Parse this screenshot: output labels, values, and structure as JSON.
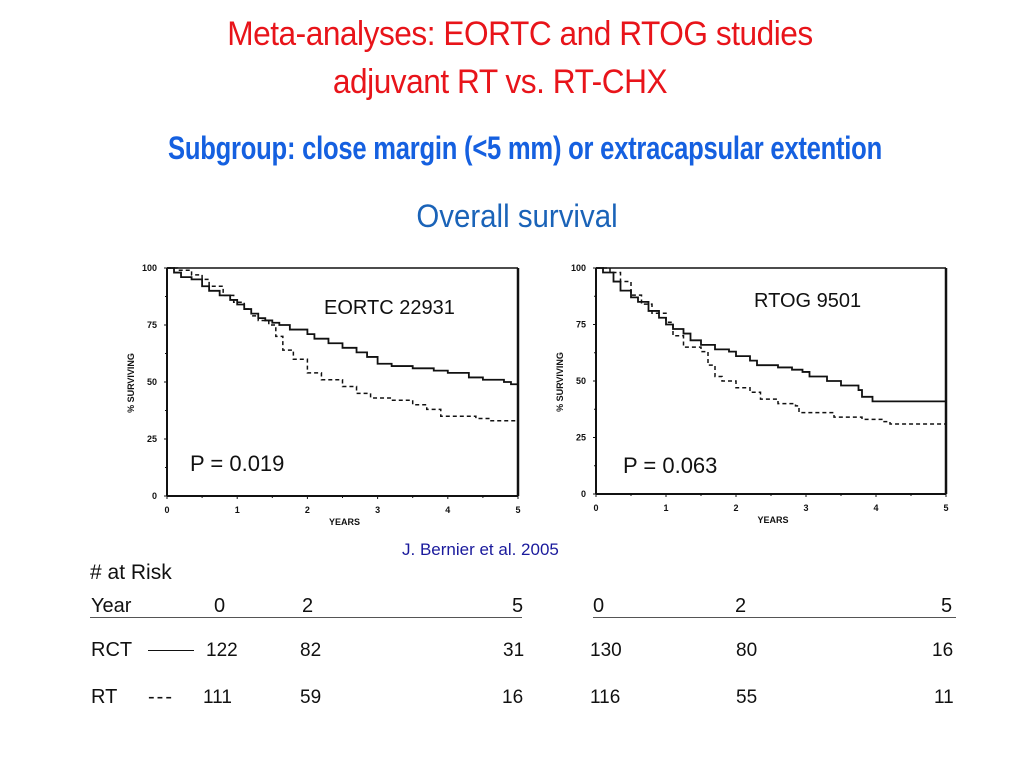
{
  "header": {
    "title_line1": "Meta-analyses: EORTC and RTOG studies",
    "title_line2": "adjuvant RT vs. RT-CHX",
    "subgroup": "Subgroup: close margin (<5 mm) or extracapsular extention",
    "section": "Overall survival"
  },
  "colors": {
    "title": "#e8141a",
    "subgroup": "#1560e0",
    "section": "#1a63b8",
    "citation": "#1a1a9c"
  },
  "chart_data": [
    {
      "type": "line",
      "title": "EORTC 22931",
      "annotation": "P = 0.019",
      "xlabel": "YEARS",
      "ylabel": "% SURVIVING",
      "xlim": [
        0,
        5
      ],
      "ylim": [
        0,
        100
      ],
      "xticks": [
        "0",
        "1",
        "2",
        "3",
        "4",
        "5"
      ],
      "yticks": [
        "0",
        "25",
        "50",
        "75",
        "100"
      ],
      "grid": false,
      "series": [
        {
          "name": "RCT",
          "style": "solid",
          "x": [
            0,
            0.1,
            0.2,
            0.35,
            0.5,
            0.6,
            0.75,
            0.9,
            1.0,
            1.1,
            1.2,
            1.3,
            1.4,
            1.5,
            1.6,
            1.75,
            2.0,
            2.1,
            2.3,
            2.5,
            2.7,
            2.85,
            3.0,
            3.2,
            3.5,
            3.8,
            4.0,
            4.3,
            4.5,
            4.8,
            4.9,
            5.0
          ],
          "y": [
            100,
            98,
            96,
            95,
            92,
            90,
            88,
            86,
            84,
            82,
            80,
            78,
            77,
            76,
            75,
            73,
            71,
            69,
            67,
            65,
            63,
            61,
            58,
            57,
            56,
            55,
            54,
            52,
            51,
            50,
            49,
            49
          ]
        },
        {
          "name": "RT",
          "style": "dashed",
          "x": [
            0,
            0.15,
            0.35,
            0.5,
            0.6,
            0.8,
            0.95,
            1.1,
            1.2,
            1.3,
            1.45,
            1.55,
            1.65,
            1.8,
            2.0,
            2.2,
            2.5,
            2.7,
            2.9,
            3.2,
            3.5,
            3.7,
            3.9,
            4.2,
            4.4,
            4.6,
            5.0
          ],
          "y": [
            100,
            99,
            97,
            95,
            92,
            88,
            85,
            82,
            79,
            77,
            75,
            70,
            64,
            60,
            54,
            51,
            48,
            45,
            43,
            42,
            40,
            38,
            35,
            35,
            34,
            33,
            33
          ]
        }
      ]
    },
    {
      "type": "line",
      "title": "RTOG 9501",
      "annotation": "P = 0.063",
      "xlabel": "YEARS",
      "ylabel": "% SURVIVING",
      "xlim": [
        0,
        5
      ],
      "ylim": [
        0,
        100
      ],
      "xticks": [
        "0",
        "1",
        "2",
        "3",
        "4",
        "5"
      ],
      "yticks": [
        "0",
        "25",
        "50",
        "75",
        "100"
      ],
      "grid": false,
      "series": [
        {
          "name": "RCT",
          "style": "solid",
          "x": [
            0,
            0.1,
            0.25,
            0.35,
            0.5,
            0.6,
            0.75,
            0.9,
            1.0,
            1.1,
            1.25,
            1.35,
            1.5,
            1.7,
            1.9,
            2.0,
            2.2,
            2.3,
            2.6,
            2.8,
            2.95,
            3.05,
            3.3,
            3.5,
            3.75,
            3.8,
            3.95,
            4.2,
            5.0
          ],
          "y": [
            100,
            98,
            94,
            90,
            87,
            85,
            81,
            78,
            75,
            73,
            71,
            68,
            66,
            64,
            63,
            61,
            59,
            57,
            56,
            55,
            54,
            52,
            50,
            48,
            46,
            43,
            41,
            41,
            41
          ]
        },
        {
          "name": "RT",
          "style": "dashed",
          "x": [
            0,
            0.2,
            0.35,
            0.5,
            0.65,
            0.8,
            1.0,
            1.1,
            1.25,
            1.5,
            1.6,
            1.7,
            1.8,
            2.0,
            2.2,
            2.35,
            2.6,
            2.85,
            2.9,
            3.2,
            3.4,
            3.6,
            3.8,
            4.1,
            4.2,
            5.0
          ],
          "y": [
            100,
            98,
            94,
            88,
            84,
            80,
            76,
            70,
            65,
            63,
            57,
            52,
            50,
            47,
            45,
            42,
            40,
            39,
            36,
            36,
            34,
            34,
            33,
            32,
            31,
            31
          ]
        }
      ]
    }
  ],
  "citation": "J. Bernier  et al. 2005",
  "at_risk": {
    "title": "# at Risk",
    "year_label": "Year",
    "left": {
      "years": [
        "0",
        "2",
        "5"
      ],
      "rows": [
        {
          "label": "RCT",
          "legend": "solid",
          "values": [
            "122",
            "82",
            "31"
          ]
        },
        {
          "label": "RT",
          "legend": "---",
          "values": [
            "111",
            "59",
            "16"
          ]
        }
      ]
    },
    "right": {
      "years": [
        "0",
        "2",
        "5"
      ],
      "rows": [
        {
          "values": [
            "130",
            "80",
            "16"
          ]
        },
        {
          "values": [
            "116",
            "55",
            "11"
          ]
        }
      ]
    }
  }
}
